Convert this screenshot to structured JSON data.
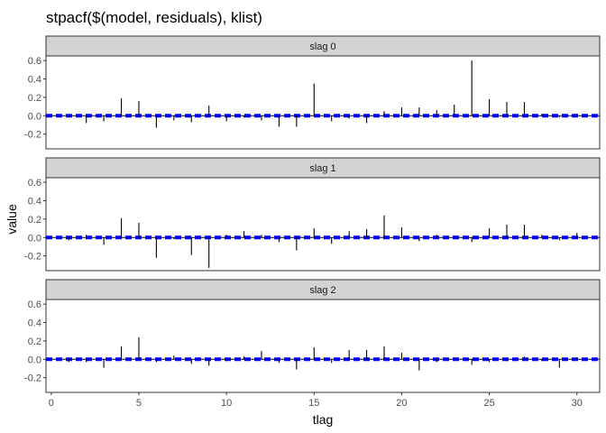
{
  "chart_data": {
    "type": "bar",
    "title": "stpacf($(model, residuals), klist)",
    "xlabel": "tlag",
    "ylabel": "value",
    "xlim": [
      -0.3,
      31.3
    ],
    "ylim": [
      -0.36,
      0.65
    ],
    "x_ticks": [
      0,
      5,
      10,
      15,
      20,
      25,
      30
    ],
    "y_ticks": [
      -0.2,
      0.0,
      0.2,
      0.4,
      0.6
    ],
    "y_tick_labels": [
      "-0.2",
      "0.0",
      "0.2",
      "0.4",
      "0.6"
    ],
    "x_tick_labels": [
      "0",
      "5",
      "10",
      "15",
      "20",
      "25",
      "30"
    ],
    "confidence_band": 0.01,
    "band_color": "#0000ff",
    "bar_color": "#000000",
    "strip_fill": "#d3d3d3",
    "panels": [
      {
        "label": "slag 0",
        "x": [
          1,
          2,
          3,
          4,
          5,
          6,
          7,
          8,
          9,
          10,
          11,
          12,
          13,
          14,
          15,
          16,
          17,
          18,
          19,
          20,
          21,
          22,
          23,
          24,
          25,
          26,
          27,
          28,
          29,
          30
        ],
        "values": [
          -0.01,
          -0.08,
          -0.06,
          0.19,
          0.16,
          -0.13,
          -0.05,
          -0.07,
          0.11,
          -0.06,
          -0.02,
          -0.05,
          -0.12,
          -0.12,
          0.35,
          -0.06,
          -0.03,
          -0.08,
          0.05,
          0.09,
          0.09,
          0.06,
          0.12,
          0.6,
          0.18,
          0.15,
          0.15,
          0.02,
          -0.02,
          0.02
        ]
      },
      {
        "label": "slag 1",
        "x": [
          1,
          2,
          3,
          4,
          5,
          6,
          7,
          8,
          9,
          10,
          11,
          12,
          13,
          14,
          15,
          16,
          17,
          18,
          19,
          20,
          21,
          22,
          23,
          24,
          25,
          26,
          27,
          28,
          29,
          30
        ],
        "values": [
          -0.03,
          0.03,
          -0.08,
          0.21,
          0.16,
          -0.22,
          -0.02,
          -0.19,
          -0.33,
          0.03,
          0.07,
          0.03,
          -0.05,
          -0.14,
          0.1,
          -0.07,
          0.07,
          0.09,
          0.24,
          0.11,
          -0.04,
          0.03,
          0.02,
          -0.05,
          0.1,
          0.14,
          0.14,
          0.03,
          -0.03,
          0.05
        ]
      },
      {
        "label": "slag 2",
        "x": [
          1,
          2,
          3,
          4,
          5,
          6,
          7,
          8,
          9,
          10,
          11,
          12,
          13,
          14,
          15,
          16,
          17,
          18,
          19,
          20,
          21,
          22,
          23,
          24,
          25,
          26,
          27,
          28,
          29,
          30
        ],
        "values": [
          -0.03,
          -0.03,
          -0.09,
          0.14,
          0.24,
          -0.03,
          0.04,
          -0.05,
          -0.07,
          -0.02,
          0.03,
          0.09,
          -0.04,
          -0.11,
          0.13,
          -0.04,
          0.1,
          0.1,
          0.14,
          0.07,
          -0.12,
          -0.03,
          0.02,
          -0.06,
          -0.03,
          -0.02,
          0.03,
          -0.02,
          -0.09,
          0.02
        ]
      }
    ]
  }
}
